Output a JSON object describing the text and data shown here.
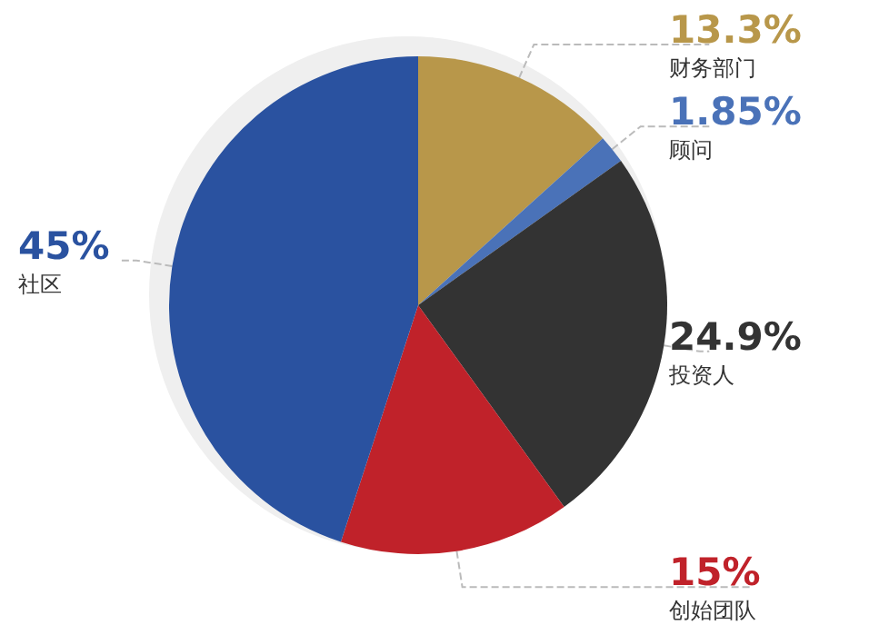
{
  "chart_data": {
    "type": "pie",
    "categories": [
      "财务部门",
      "顾问",
      "投资人",
      "创始团队",
      "社区"
    ],
    "values": [
      13.3,
      1.85,
      24.9,
      15,
      45
    ],
    "value_labels": [
      "13.3%",
      "1.85%",
      "24.9%",
      "15%",
      "45%"
    ],
    "colors": [
      "#b8974a",
      "#4a72b8",
      "#333333",
      "#c0222a",
      "#2a52a0"
    ]
  }
}
